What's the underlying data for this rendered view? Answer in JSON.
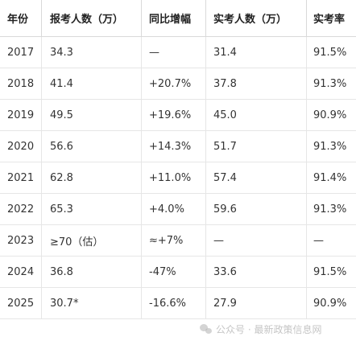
{
  "table": {
    "headers": [
      "年份",
      "报考人数（万）",
      "同比增幅",
      "实考人数（万）",
      "实考率"
    ],
    "rows": [
      [
        "2017",
        "34.3",
        "—",
        "31.4",
        "91.5%"
      ],
      [
        "2018",
        "41.4",
        "+20.7%",
        "37.8",
        "91.3%"
      ],
      [
        "2019",
        "49.5",
        "+19.6%",
        "45.0",
        "90.9%"
      ],
      [
        "2020",
        "56.6",
        "+14.3%",
        "51.7",
        "91.3%"
      ],
      [
        "2021",
        "62.8",
        "+11.0%",
        "57.4",
        "91.4%"
      ],
      [
        "2022",
        "65.3",
        "+4.0%",
        "59.6",
        "91.3%"
      ],
      [
        "2023",
        "≥70（估）",
        "≈+7%",
        "—",
        "—"
      ],
      [
        "2024",
        "36.8",
        "-47%",
        "33.6",
        "91.5%"
      ],
      [
        "2025",
        "30.7*",
        "-16.6%",
        "27.9",
        "90.9%"
      ]
    ]
  },
  "watermark": {
    "text": "公众号 · 最新政策信息网",
    "icon": "wechat-icon"
  }
}
